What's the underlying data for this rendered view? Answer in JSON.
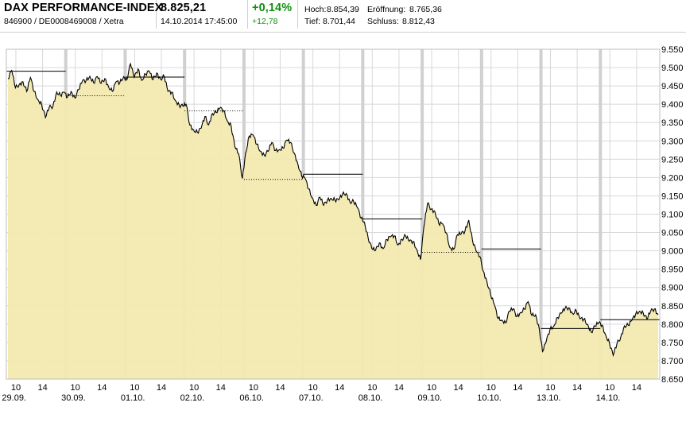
{
  "header": {
    "name": "DAX PERFORMANCE-INDEX",
    "ids": "846900 / DE0008469008 / Xetra",
    "price": "8.825,21",
    "datetime": "14.10.2014 17:45:00",
    "change_pct": "+0,14%",
    "change_abs": "+12,78",
    "stats": {
      "high_label": "Hoch:",
      "high": "8.854,39",
      "open_label": "Eröffnung:",
      "open": "8.765,36",
      "low_label": "Tief:",
      "low": "8.701,44",
      "close_label": "Schluss:",
      "close": "8.812,43"
    },
    "colors": {
      "change": "#109010"
    }
  },
  "chart_data": {
    "type": "area",
    "title": "",
    "xlabel": "",
    "ylabel": "",
    "ylim": [
      8650,
      9550
    ],
    "yticks": [
      8650,
      8700,
      8750,
      8800,
      8850,
      8900,
      8950,
      9000,
      9050,
      9100,
      9150,
      9200,
      9250,
      9300,
      9350,
      9400,
      9450,
      9500,
      9550
    ],
    "ytick_labels": [
      "8.650",
      "8.700",
      "8.750",
      "8.800",
      "8.850",
      "8.900",
      "8.950",
      "9.000",
      "9.050",
      "9.100",
      "9.150",
      "9.200",
      "9.250",
      "9.300",
      "9.350",
      "9.400",
      "9.450",
      "9.500",
      "9.550"
    ],
    "days": [
      "29.09.",
      "30.09.",
      "01.10.",
      "02.10.",
      "06.10.",
      "07.10.",
      "08.10.",
      "09.10.",
      "10.10.",
      "13.10.",
      "14.10."
    ],
    "hour_ticks": [
      "10",
      "14"
    ],
    "grid": true,
    "colors": {
      "fill": "#f2e9b0",
      "line": "#000000",
      "grid": "#d8d8d8",
      "day_separator": "#d0d0d0"
    },
    "prev_close": [
      9490,
      9423,
      9474,
      9382,
      9195,
      9209,
      9087,
      8996,
      9005,
      8788,
      8812
    ],
    "series": [
      {
        "values": [
          [
            9470,
            9495,
            9440,
            9460,
            9455,
            9440,
            9470,
            9435,
            9415,
            9395,
            9370,
            9385,
            9400,
            9430,
            9425,
            9435
          ],
          [
            9425,
            9430,
            9420,
            9440,
            9460,
            9470,
            9470,
            9465,
            9470,
            9460,
            9470,
            9445,
            9440,
            9455,
            9465,
            9470
          ],
          [
            9470,
            9505,
            9480,
            9490,
            9470,
            9480,
            9490,
            9470,
            9480,
            9475,
            9470,
            9440,
            9430,
            9410,
            9400,
            9390
          ],
          [
            9395,
            9345,
            9330,
            9320,
            9340,
            9360,
            9350,
            9370,
            9380,
            9390,
            9380,
            9360,
            9335,
            9290,
            9260,
            9200
          ],
          [
            9260,
            9320,
            9310,
            9295,
            9270,
            9260,
            9275,
            9290,
            9280,
            9270,
            9285,
            9300,
            9295,
            9270,
            9230,
            9210
          ],
          [
            9200,
            9170,
            9140,
            9130,
            9140,
            9130,
            9135,
            9145,
            9140,
            9135,
            9160,
            9150,
            9140,
            9130,
            9120,
            9090
          ],
          [
            9085,
            9030,
            9010,
            9000,
            9020,
            9010,
            9025,
            9045,
            9035,
            9020,
            9030,
            9040,
            9030,
            9020,
            9010,
            8970
          ],
          [
            9065,
            9125,
            9120,
            9100,
            9080,
            9070,
            9050,
            9010,
            9000,
            9050,
            9040,
            9060,
            9080,
            9030,
            9000,
            8980
          ],
          [
            8940,
            8920,
            8880,
            8850,
            8820,
            8805,
            8810,
            8830,
            8845,
            8820,
            8830,
            8845,
            8855,
            8830,
            8820,
            8790
          ],
          [
            8720,
            8760,
            8780,
            8800,
            8815,
            8830,
            8845,
            8840,
            8835,
            8830,
            8820,
            8810,
            8800,
            8780,
            8790,
            8810
          ],
          [
            8800,
            8770,
            8745,
            8720,
            8740,
            8770,
            8790,
            8800,
            8810,
            8825,
            8840,
            8825,
            8820,
            8830,
            8845,
            8825
          ]
        ]
      }
    ]
  }
}
